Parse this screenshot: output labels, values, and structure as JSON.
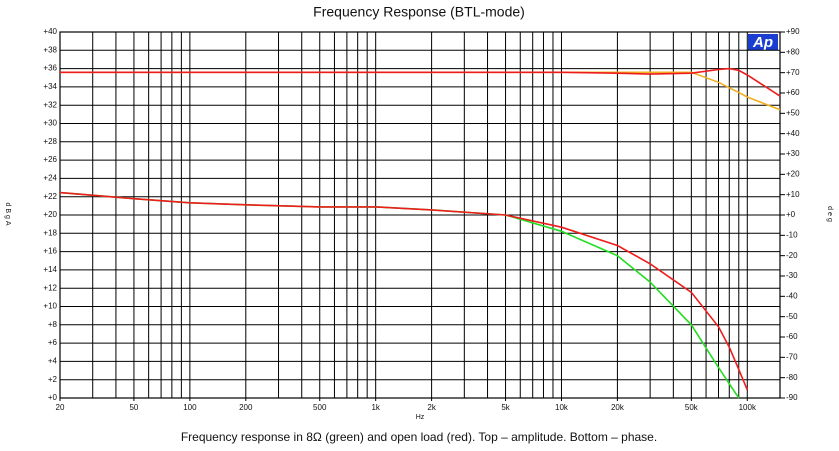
{
  "chart_data": {
    "type": "line",
    "title": "Frequency Response (BTL-mode)",
    "caption": "Frequency response in 8Ω (green) and open load (red). Top – amplitude. Bottom – phase.",
    "logo": "Ap",
    "xlabel": "Hz",
    "ylabel": "dBgA",
    "y2label": "deg",
    "xscale": "log",
    "xlim": [
      20,
      150000
    ],
    "xticks": [
      20,
      50,
      100,
      200,
      500,
      {
        "value": 1000,
        "label": "1k"
      },
      {
        "value": 2000,
        "label": "2k"
      },
      {
        "value": 5000,
        "label": "5k"
      },
      {
        "value": 10000,
        "label": "10k"
      },
      {
        "value": 20000,
        "label": "20k"
      },
      {
        "value": 50000,
        "label": "50k"
      },
      {
        "value": 100000,
        "label": "100k"
      }
    ],
    "xgrid": [
      20,
      30,
      40,
      50,
      60,
      70,
      80,
      90,
      100,
      200,
      300,
      400,
      500,
      600,
      700,
      800,
      900,
      1000,
      2000,
      3000,
      4000,
      5000,
      6000,
      7000,
      8000,
      9000,
      10000,
      20000,
      30000,
      40000,
      50000,
      60000,
      70000,
      80000,
      90000,
      100000
    ],
    "ylim": [
      0,
      40
    ],
    "yticks": [
      {
        "value": 0,
        "label": "+0"
      },
      {
        "value": 2,
        "label": "+2"
      },
      {
        "value": 4,
        "label": "+4"
      },
      {
        "value": 6,
        "label": "+6"
      },
      {
        "value": 8,
        "label": "+8"
      },
      {
        "value": 10,
        "label": "+10"
      },
      {
        "value": 12,
        "label": "+12"
      },
      {
        "value": 14,
        "label": "+14"
      },
      {
        "value": 16,
        "label": "+16"
      },
      {
        "value": 18,
        "label": "+18"
      },
      {
        "value": 20,
        "label": "+20"
      },
      {
        "value": 22,
        "label": "+22"
      },
      {
        "value": 24,
        "label": "+24"
      },
      {
        "value": 26,
        "label": "+26"
      },
      {
        "value": 28,
        "label": "+28"
      },
      {
        "value": 30,
        "label": "+30"
      },
      {
        "value": 32,
        "label": "+32"
      },
      {
        "value": 34,
        "label": "+34"
      },
      {
        "value": 36,
        "label": "+36"
      },
      {
        "value": 38,
        "label": "+38"
      },
      {
        "value": 40,
        "label": "+40"
      }
    ],
    "y2lim": [
      -90,
      90
    ],
    "y2ticks": [
      -90,
      -80,
      -70,
      -60,
      -50,
      -40,
      -30,
      -20,
      -10,
      {
        "value": 0,
        "label": "+0"
      },
      {
        "value": 10,
        "label": "+10"
      },
      {
        "value": 20,
        "label": "+20"
      },
      {
        "value": 30,
        "label": "+30"
      },
      {
        "value": 40,
        "label": "+40"
      },
      {
        "value": 50,
        "label": "+50"
      },
      {
        "value": 60,
        "label": "+60"
      },
      {
        "value": 70,
        "label": "+70"
      },
      {
        "value": 80,
        "label": "+80"
      },
      {
        "value": 90,
        "label": "+90"
      }
    ],
    "grid": true,
    "x": [
      20,
      50,
      100,
      200,
      500,
      1000,
      2000,
      5000,
      10000,
      20000,
      30000,
      50000,
      70000,
      80000,
      90000,
      100000,
      150000
    ],
    "series": [
      {
        "color": "#f0b020",
        "axis": "y",
        "values": [
          35.6,
          35.6,
          35.6,
          35.6,
          35.6,
          35.6,
          35.6,
          35.6,
          35.6,
          35.6,
          35.6,
          35.6,
          34.5,
          33.9,
          33.4,
          32.9,
          31.5
        ]
      },
      {
        "color": "#ee1c1c",
        "axis": "y",
        "values": [
          35.6,
          35.6,
          35.6,
          35.6,
          35.6,
          35.6,
          35.6,
          35.6,
          35.6,
          35.5,
          35.4,
          35.5,
          35.9,
          36,
          35.8,
          35.3,
          33
        ]
      },
      {
        "color": "#22dd22",
        "axis": "y2",
        "values": [
          11,
          8,
          6,
          5,
          4,
          4,
          2.5,
          0,
          -8,
          -20,
          -33,
          -54,
          -75,
          -83,
          -90,
          null,
          null
        ]
      },
      {
        "color": "#ee1c1c",
        "axis": "y2",
        "values": [
          11,
          8,
          6,
          5,
          4,
          4,
          2.5,
          0,
          -6,
          -15,
          -24,
          -38,
          -55,
          -65,
          -76,
          -86,
          null
        ]
      }
    ]
  }
}
